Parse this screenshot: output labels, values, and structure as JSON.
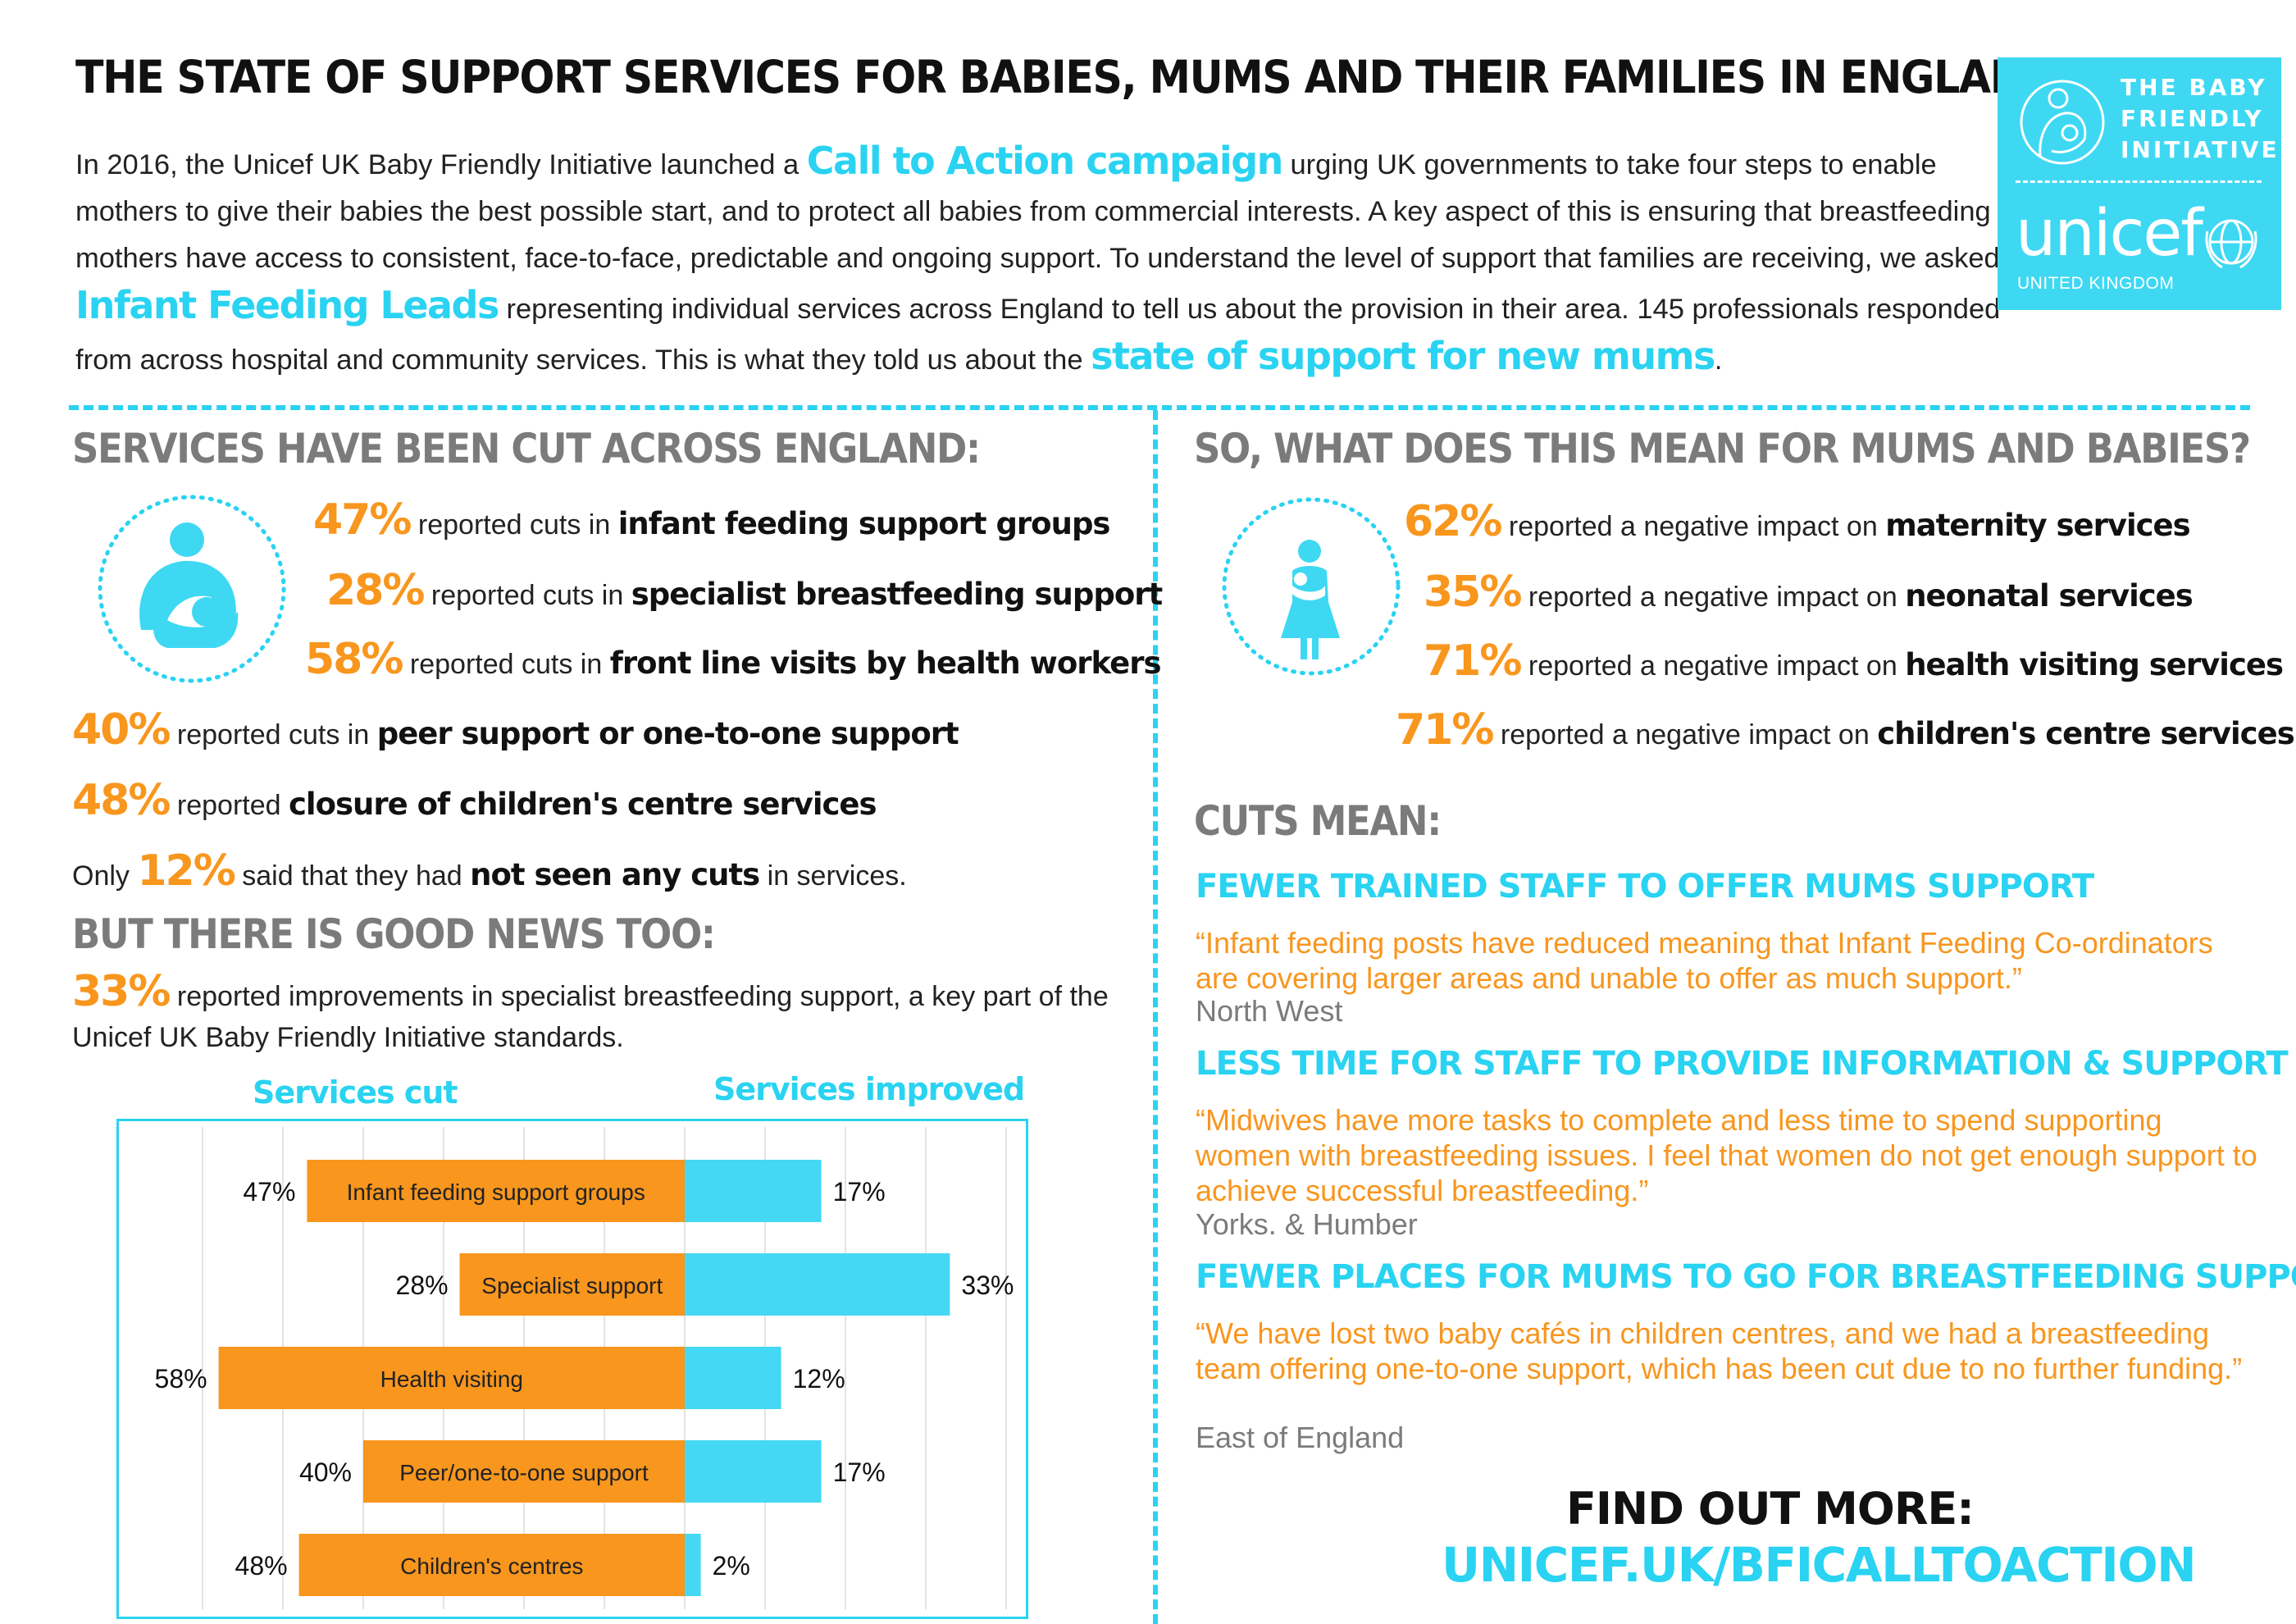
{
  "title": "THE STATE OF SUPPORT SERVICES FOR BABIES, MUMS AND THEIR FAMILIES IN ENGLAND",
  "intro": {
    "p1": "In 2016, the Unicef UK Baby Friendly Initiative launched a ",
    "h1": "Call to Action campaign",
    "p2": " urging UK governments to take four steps to enable mothers to give their babies the best possible start, and to protect all babies from commercial interests. A key aspect of this is ensuring that breastfeeding mothers have access to consistent, face-to-face, predictable and ongoing support. To understand the level of support that families are receiving, we asked ",
    "h2": "Infant Feeding Leads",
    "p3": " representing individual services across England to tell us about the provision in their area. 145 professionals responded from across hospital and community services. This is what they told us about the ",
    "h3": "state of support for new mums",
    "p4": "."
  },
  "logo": {
    "line1": "THE BABY",
    "line2": "FRIENDLY",
    "line3": "INITIATIVE",
    "brand": "unicef",
    "country": "UNITED KINGDOM",
    "icons": [
      "mother-child-icon",
      "unicef-globe-icon"
    ]
  },
  "left": {
    "heading": "SERVICES HAVE BEEN CUT ACROSS ENGLAND:",
    "icon": "breastfeeding-mother-icon",
    "stats": [
      {
        "pct": "47%",
        "text": " reported cuts in ",
        "bold": "infant feeding support groups"
      },
      {
        "pct": "28%",
        "text": " reported cuts in ",
        "bold": "specialist breastfeeding support"
      },
      {
        "pct": "58%",
        "text": " reported cuts in ",
        "bold": "front line visits by health workers"
      },
      {
        "pct": "40%",
        "text": " reported cuts in ",
        "bold": "peer support or one-to-one support"
      },
      {
        "pct": "48%",
        "text": " reported ",
        "bold": "closure of children's centre services"
      }
    ],
    "only": {
      "pre": "Only ",
      "pct": "12%",
      "mid": " said that they had ",
      "bold": "not seen any cuts",
      "post": " in services."
    },
    "good_heading": "BUT THERE IS GOOD NEWS TOO:",
    "good": {
      "pct": "33%",
      "text": " reported improvements in specialist breastfeeding support, a key part of the Unicef UK Baby Friendly Initiative standards."
    }
  },
  "chart_data": {
    "type": "bar",
    "orientation": "horizontal-diverging",
    "categories": [
      "Infant feeding support groups",
      "Specialist support",
      "Health visiting",
      "Peer/one-to-one support",
      "Children's centres"
    ],
    "series": [
      {
        "name": "Services cut",
        "values": [
          47,
          28,
          58,
          40,
          48
        ],
        "labels": [
          "47%",
          "28%",
          "58%",
          "40%",
          "48%"
        ],
        "color": "#f8961e"
      },
      {
        "name": "Services improved",
        "values": [
          17,
          33,
          12,
          17,
          2
        ],
        "labels": [
          "17%",
          "33%",
          "12%",
          "17%",
          "2%"
        ],
        "color": "#44d8f5"
      }
    ],
    "grid": true
  },
  "right": {
    "heading": "SO, WHAT DOES THIS MEAN FOR MUMS AND BABIES?",
    "icon": "mother-holding-baby-icon",
    "stats": [
      {
        "pct": "62%",
        "text": " reported a negative impact on ",
        "bold": "maternity services"
      },
      {
        "pct": "35%",
        "text": " reported a negative impact on ",
        "bold": "neonatal services"
      },
      {
        "pct": "71%",
        "text": " reported a negative impact on ",
        "bold": "health visiting services"
      },
      {
        "pct": "71%",
        "text": " reported a negative impact on ",
        "bold": "children's centre services"
      }
    ],
    "cuts_heading": "CUTS MEAN:",
    "points": [
      {
        "head": "FEWER TRAINED STAFF TO OFFER MUMS SUPPORT",
        "quote": "“Infant feeding posts have reduced meaning that Infant Feeding Co-ordinators are covering larger areas and unable to offer as much support.”",
        "region": "North West"
      },
      {
        "head": "LESS TIME FOR STAFF TO PROVIDE INFORMATION & SUPPORT",
        "quote": "“Midwives have more tasks to complete and less time to spend supporting women with breastfeeding issues. I feel that women do not get enough support to achieve successful breastfeeding.”",
        "region": "Yorks. & Humber"
      },
      {
        "head": "FEWER PLACES FOR MUMS TO GO FOR BREASTFEEDING SUPPORT",
        "quote": "“We have lost two baby cafés in children centres, and we had a breastfeeding team offering one-to-one support, which has been cut due to no further funding.”",
        "region": "East of England"
      }
    ],
    "find_more": "FIND OUT MORE:",
    "url": "UNICEF.UK/BFICALLTOACTION"
  },
  "colors": {
    "accent": "#29d3f1",
    "orange": "#f8961e",
    "grey": "#7b7b7b"
  }
}
